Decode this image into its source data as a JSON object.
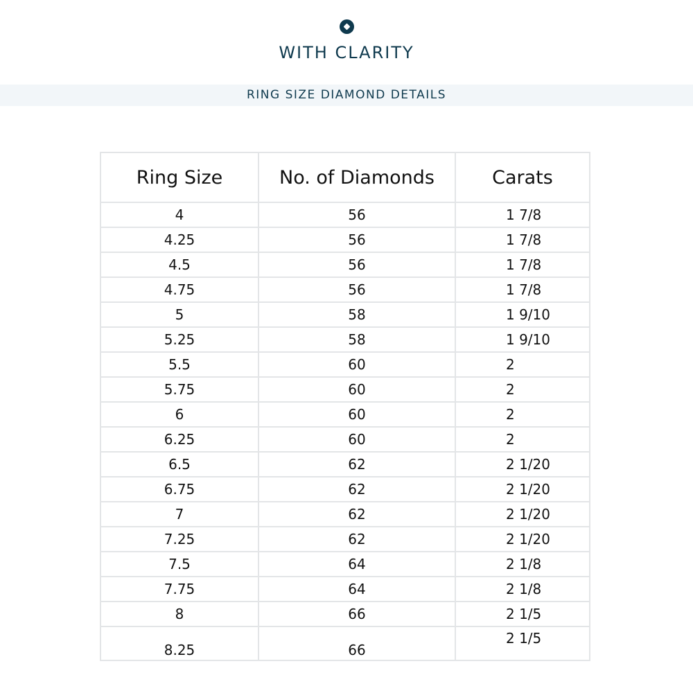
{
  "brand": {
    "name": "WITH CLARITY",
    "logo_icon": "diamond-circle-icon",
    "color": "#0f3a4e"
  },
  "subtitle": "RING SIZE DIAMOND DETAILS",
  "table": {
    "headers": [
      "Ring Size",
      "No. of Diamonds",
      "Carats"
    ],
    "rows": [
      [
        "4",
        "56",
        "1 7/8"
      ],
      [
        "4.25",
        "56",
        "1 7/8"
      ],
      [
        "4.5",
        "56",
        "1 7/8"
      ],
      [
        "4.75",
        "56",
        "1 7/8"
      ],
      [
        "5",
        "58",
        "1 9/10"
      ],
      [
        "5.25",
        "58",
        "1 9/10"
      ],
      [
        "5.5",
        "60",
        "2"
      ],
      [
        "5.75",
        "60",
        "2"
      ],
      [
        "6",
        "60",
        "2"
      ],
      [
        "6.25",
        "60",
        "2"
      ],
      [
        "6.5",
        "62",
        "2 1/20"
      ],
      [
        "6.75",
        "62",
        "2 1/20"
      ],
      [
        "7",
        "62",
        "2 1/20"
      ],
      [
        "7.25",
        "62",
        "2 1/20"
      ],
      [
        "7.5",
        "64",
        "2 1/8"
      ],
      [
        "7.75",
        "64",
        "2 1/8"
      ],
      [
        "8",
        "66",
        "2 1/5"
      ],
      [
        "8.25",
        "66",
        "2 1/5"
      ]
    ]
  }
}
